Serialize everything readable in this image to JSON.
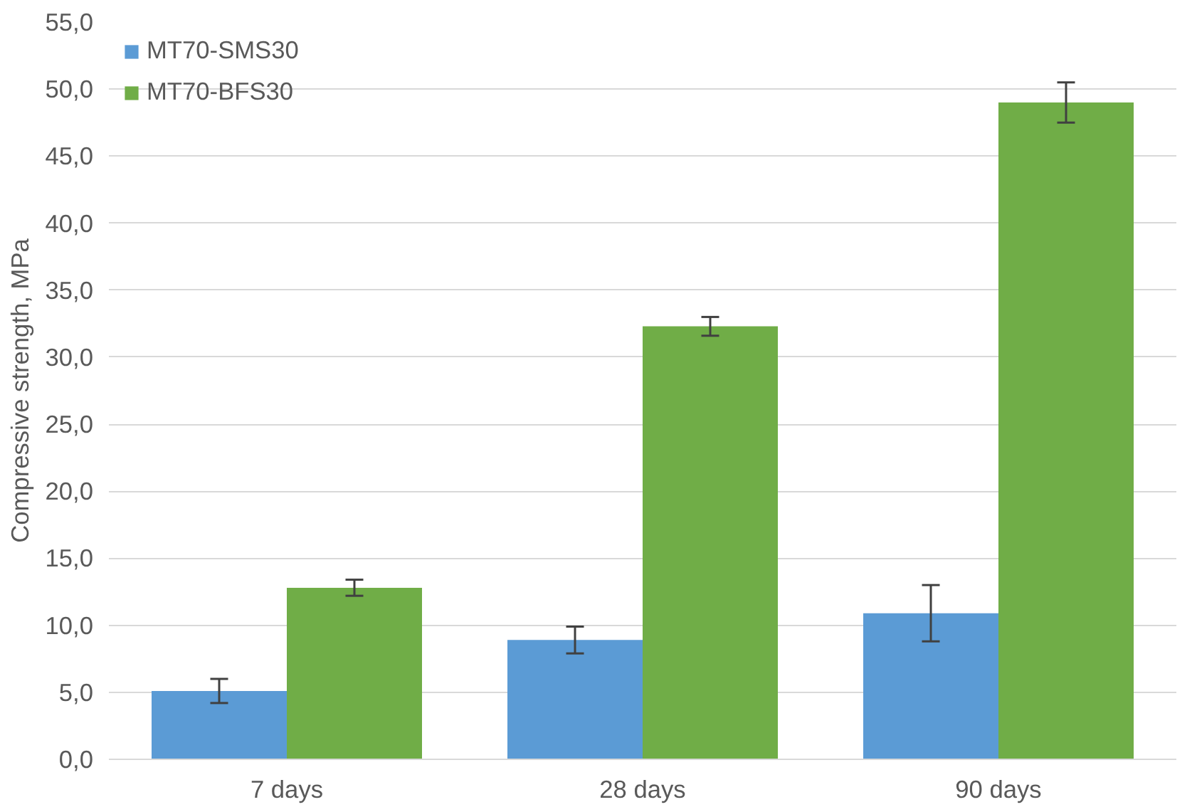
{
  "chart_data": {
    "type": "bar",
    "ylabel": "Compressive strength, MPa",
    "categories": [
      "7 days",
      "28 days",
      "90 days"
    ],
    "series": [
      {
        "name": "MT70-SMS30",
        "color": "#5b9bd5",
        "values": [
          5.1,
          8.9,
          10.9
        ],
        "errors": [
          0.9,
          1.0,
          2.1
        ]
      },
      {
        "name": "MT70-BFS30",
        "color": "#70ad47",
        "values": [
          12.8,
          32.3,
          49.0
        ],
        "errors": [
          0.6,
          0.7,
          1.5
        ]
      }
    ],
    "ylim": [
      0,
      55
    ],
    "yticks": [
      {
        "value": 0,
        "label": "0,0"
      },
      {
        "value": 5,
        "label": "5,0"
      },
      {
        "value": 10,
        "label": "10,0"
      },
      {
        "value": 15,
        "label": "15,0"
      },
      {
        "value": 20,
        "label": "20,0"
      },
      {
        "value": 25,
        "label": "25,0"
      },
      {
        "value": 30,
        "label": "30,0"
      },
      {
        "value": 35,
        "label": "35,0"
      },
      {
        "value": 40,
        "label": "40,0"
      },
      {
        "value": 45,
        "label": "45,0"
      },
      {
        "value": 50,
        "label": "50,0"
      },
      {
        "value": 55,
        "label": "55,0"
      }
    ],
    "grid": "y",
    "legend": "top left"
  }
}
